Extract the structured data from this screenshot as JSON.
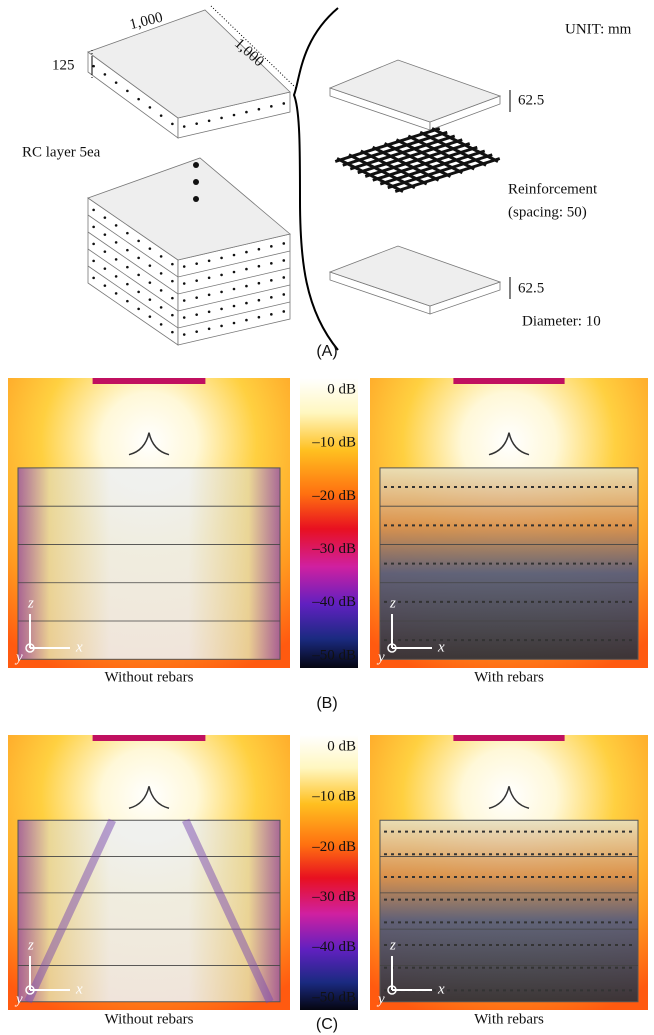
{
  "panel_a": {
    "width": "1,000",
    "depth": "1,000",
    "height": "125",
    "stack_label": "RC layer 5ea",
    "unit": "UNIT: mm",
    "top_thickness": "62.5",
    "reinforcement": "Reinforcement",
    "spacing": "(spacing: 50)",
    "bottom_thickness": "62.5",
    "diameter": "Diameter: 10",
    "caption": "(A)"
  },
  "panel_b": {
    "colorbar": [
      "0 dB",
      "–10 dB",
      "–20 dB",
      "–30 dB",
      "–40 dB",
      "–50 dB"
    ],
    "left_caption": "Without rebars",
    "right_caption": "With rebars",
    "axes": {
      "z": "z",
      "x": "x",
      "y": "y"
    },
    "caption": "(B)"
  },
  "panel_c": {
    "colorbar": [
      "0 dB",
      "–10 dB",
      "–20 dB",
      "–30 dB",
      "–40 dB",
      "–50 dB"
    ],
    "left_caption": "Without rebars",
    "right_caption": "With rebars",
    "axes": {
      "z": "z",
      "x": "x",
      "y": "y"
    },
    "caption": "(C)"
  }
}
